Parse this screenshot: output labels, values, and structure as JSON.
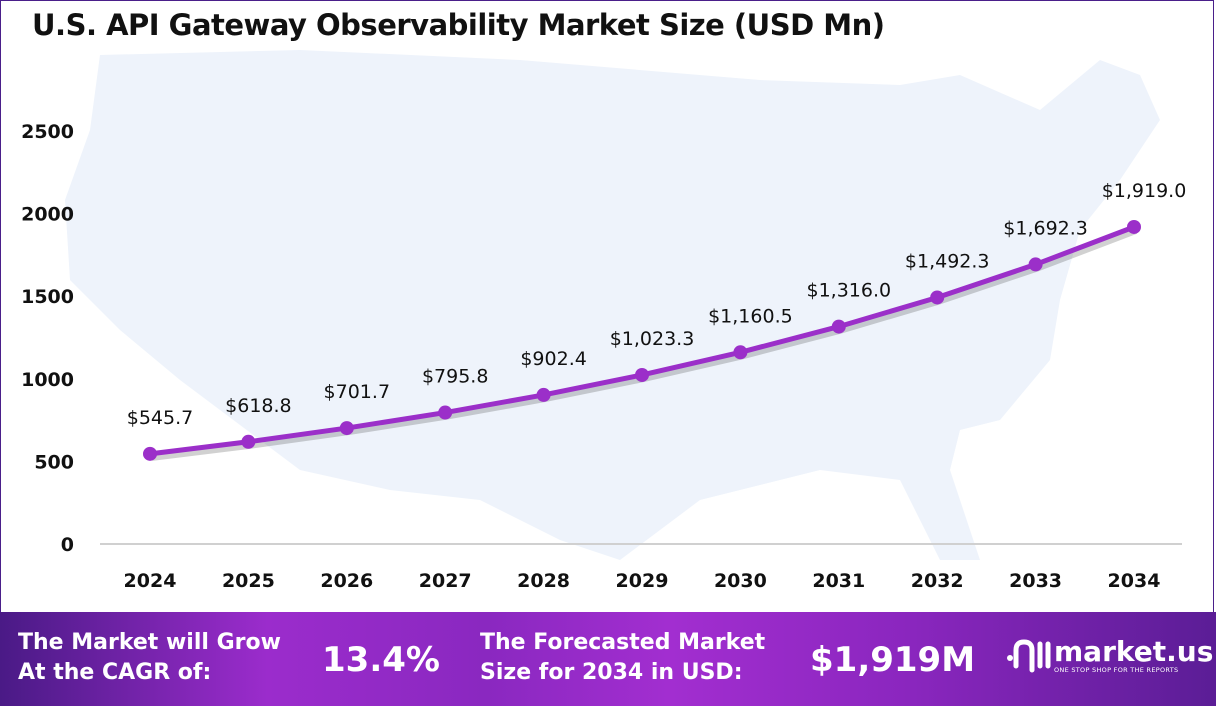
{
  "title": "U.S. API Gateway Observability Market Size (USD Mn)",
  "chart_data": {
    "type": "line",
    "title": "U.S. API Gateway Observability Market Size (USD Mn)",
    "categories": [
      "2024",
      "2025",
      "2026",
      "2027",
      "2028",
      "2029",
      "2030",
      "2031",
      "2032",
      "2033",
      "2034"
    ],
    "values": [
      545.7,
      618.8,
      701.7,
      795.8,
      902.4,
      1023.3,
      1160.5,
      1316.0,
      1492.3,
      1692.3,
      1919.0
    ],
    "data_labels": [
      "$545.7",
      "$618.8",
      "$701.7",
      "$795.8",
      "$902.4",
      "$1,023.3",
      "$1,160.5",
      "$1,316.0",
      "$1,492.3",
      "$1,692.3",
      "$1,919.0"
    ],
    "yticks": [
      "0",
      "500",
      "1000",
      "1500",
      "2000",
      "2500"
    ],
    "ylim": [
      0,
      2500
    ],
    "grid": false,
    "line_color": "#9b2fc9"
  },
  "footer": {
    "cagr_label_1": "The Market will Grow",
    "cagr_label_2": "At the CAGR of:",
    "cagr_value": "13.4%",
    "forecast_label_1": "The Forecasted Market",
    "forecast_label_2": "Size for 2034 in USD:",
    "forecast_value": "$1,919M",
    "logo_name": "market.us",
    "logo_tagline": "ONE STOP SHOP FOR THE REPORTS"
  }
}
